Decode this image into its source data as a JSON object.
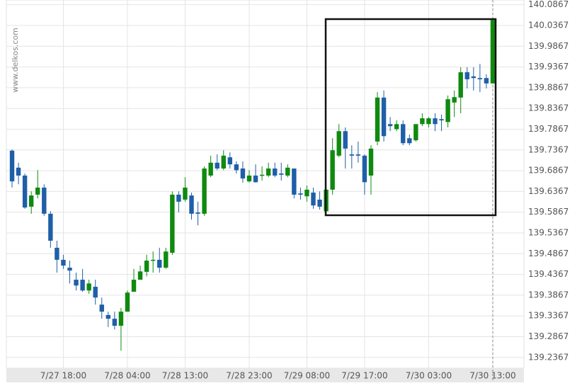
{
  "chart_data": {
    "type": "candlestick",
    "watermark": "www.delkos.com",
    "categories": [
      null,
      null,
      null,
      null,
      null,
      null,
      null,
      null,
      "7/27 18:00",
      null,
      null,
      null,
      null,
      null,
      null,
      null,
      null,
      null,
      "7/28 04:00",
      null,
      null,
      null,
      null,
      null,
      null,
      null,
      null,
      "7/28 13:00",
      null,
      null,
      null,
      null,
      null,
      null,
      null,
      null,
      null,
      "7/28 23:00",
      null,
      null,
      null,
      null,
      null,
      null,
      null,
      null,
      "7/29 08:00",
      null,
      null,
      null,
      null,
      null,
      null,
      null,
      null,
      "7/29 17:00",
      null,
      null,
      null,
      null,
      null,
      null,
      null,
      null,
      null,
      "7/30 03:00",
      null,
      null,
      null,
      null,
      null,
      null,
      null,
      null,
      null,
      "7/30 13:00"
    ],
    "open": [
      139.735,
      139.694,
      139.675,
      139.6,
      139.629,
      139.646,
      139.583,
      139.501,
      139.472,
      139.453,
      139.424,
      139.424,
      139.398,
      139.407,
      139.364,
      139.339,
      139.33,
      139.313,
      139.347,
      139.395,
      139.424,
      139.443,
      139.47,
      139.472,
      139.453,
      139.489,
      139.629,
      139.617,
      139.627,
      139.586,
      139.583,
      139.675,
      139.706,
      139.692,
      139.719,
      139.702,
      139.692,
      139.661,
      139.675,
      139.675,
      139.675,
      139.692,
      139.68,
      139.675,
      139.692,
      139.632,
      139.625,
      139.634,
      139.617,
      139.589,
      139.641,
      139.723,
      139.782,
      139.726,
      139.726,
      139.723,
      139.675,
      139.757,
      139.863,
      139.799,
      139.787,
      139.799,
      139.765,
      139.76,
      139.799,
      139.799,
      139.813,
      139.811,
      139.804,
      139.851,
      139.863,
      139.924,
      139.914,
      139.91,
      139.91,
      139.897
    ],
    "high": [
      139.738,
      139.706,
      139.68,
      139.637,
      139.688,
      139.654,
      139.589,
      139.518,
      139.484,
      139.47,
      139.441,
      139.45,
      139.424,
      139.424,
      139.381,
      139.347,
      139.347,
      139.356,
      139.398,
      139.45,
      139.458,
      139.484,
      139.492,
      139.501,
      139.501,
      139.637,
      139.637,
      139.671,
      139.634,
      139.612,
      139.697,
      139.723,
      139.726,
      139.736,
      139.731,
      139.709,
      139.709,
      139.688,
      139.702,
      139.697,
      139.706,
      139.706,
      139.706,
      139.702,
      139.692,
      139.646,
      139.651,
      139.646,
      139.637,
      139.646,
      139.765,
      139.799,
      139.791,
      139.748,
      139.757,
      139.726,
      139.748,
      139.876,
      139.88,
      139.816,
      139.808,
      139.808,
      139.774,
      139.799,
      139.825,
      139.816,
      139.825,
      139.822,
      139.868,
      139.88,
      139.936,
      139.936,
      139.936,
      139.944,
      139.919,
      140.05
    ],
    "low": [
      139.646,
      139.654,
      139.595,
      139.583,
      139.62,
      139.578,
      139.501,
      139.441,
      139.45,
      139.415,
      139.398,
      139.395,
      139.39,
      139.364,
      139.33,
      139.31,
      139.304,
      139.253,
      139.347,
      139.395,
      139.424,
      139.432,
      139.441,
      139.441,
      139.45,
      139.484,
      139.586,
      139.612,
      139.569,
      139.555,
      139.578,
      139.671,
      139.688,
      139.688,
      139.692,
      139.68,
      139.658,
      139.658,
      139.658,
      139.663,
      139.671,
      139.671,
      139.663,
      139.671,
      139.62,
      139.617,
      139.612,
      139.595,
      139.593,
      139.581,
      139.629,
      139.719,
      139.692,
      139.692,
      139.706,
      139.629,
      139.629,
      139.748,
      139.757,
      139.782,
      139.782,
      139.748,
      139.748,
      139.757,
      139.794,
      139.791,
      139.782,
      139.782,
      139.791,
      139.816,
      139.825,
      139.885,
      139.88,
      139.876,
      139.885,
      139.897
    ],
    "close": [
      139.661,
      139.675,
      139.598,
      139.627,
      139.646,
      139.583,
      139.518,
      139.472,
      139.458,
      139.446,
      139.41,
      139.398,
      139.415,
      139.381,
      139.347,
      139.33,
      139.313,
      139.347,
      139.393,
      139.424,
      139.444,
      139.47,
      139.472,
      139.453,
      139.492,
      139.629,
      139.612,
      139.646,
      139.583,
      139.583,
      139.692,
      139.706,
      139.692,
      139.723,
      139.702,
      139.688,
      139.668,
      139.675,
      139.659,
      139.677,
      139.692,
      139.675,
      139.677,
      139.694,
      139.629,
      139.629,
      139.641,
      139.603,
      139.6,
      139.641,
      139.736,
      139.782,
      139.74,
      139.723,
      139.723,
      139.659,
      139.74,
      139.863,
      139.77,
      139.794,
      139.799,
      139.753,
      139.753,
      139.799,
      139.813,
      139.813,
      139.799,
      139.808,
      139.859,
      139.864,
      139.924,
      139.907,
      139.91,
      139.907,
      139.897,
      140.05
    ],
    "up_color": "#0f8a0f",
    "down_color": "#1f5fa8",
    "ylim": [
      139.2108,
      140.0981
    ],
    "yticks": [
      140.0867,
      140.0367,
      139.9867,
      139.9367,
      139.8867,
      139.8367,
      139.7867,
      139.7367,
      139.6867,
      139.6367,
      139.5867,
      139.5367,
      139.4867,
      139.4367,
      139.3867,
      139.3367,
      139.2867,
      139.2367
    ],
    "grid": true
  }
}
